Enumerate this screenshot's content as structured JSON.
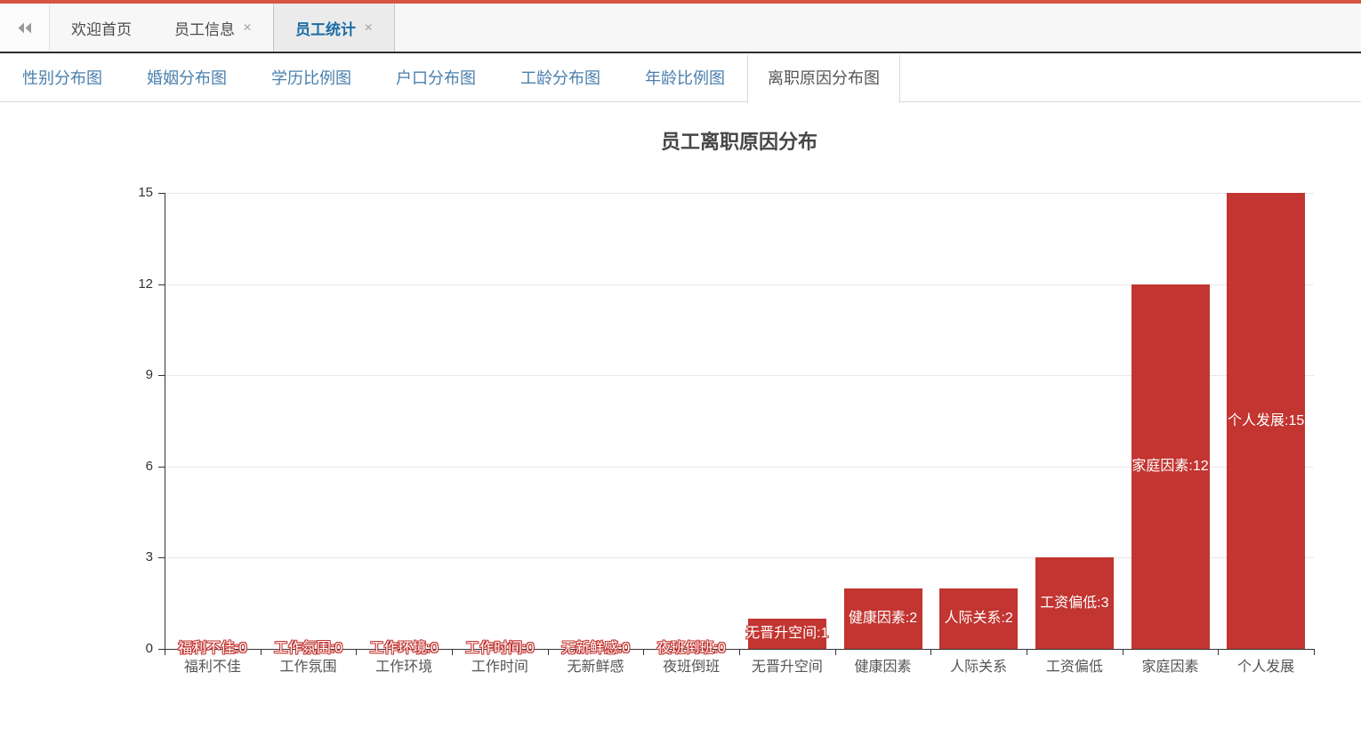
{
  "page": {
    "top_strip_color": "#d85442",
    "accent_blue": "#1b6ca8",
    "subtab_blue": "#4a7fad"
  },
  "tabbar": {
    "collapse_icon": "chevrons-left-icon",
    "tabs": [
      {
        "label": "欢迎首页",
        "closable": false,
        "active": false
      },
      {
        "label": "员工信息",
        "closable": true,
        "active": false,
        "close_glyph": "✕"
      },
      {
        "label": "员工统计",
        "closable": true,
        "active": true,
        "close_glyph": "✕"
      }
    ]
  },
  "subtabs": {
    "items": [
      {
        "label": "性别分布图",
        "active": false
      },
      {
        "label": "婚姻分布图",
        "active": false
      },
      {
        "label": "学历比例图",
        "active": false
      },
      {
        "label": "户口分布图",
        "active": false
      },
      {
        "label": "工龄分布图",
        "active": false
      },
      {
        "label": "年龄比例图",
        "active": false
      },
      {
        "label": "离职原因分布图",
        "active": true
      }
    ]
  },
  "chart_data": {
    "type": "bar",
    "title": "员工离职原因分布",
    "categories": [
      "福利不佳",
      "工作氛围",
      "工作环境",
      "工作时间",
      "无新鲜感",
      "夜班倒班",
      "无晋升空间",
      "健康因素",
      "人际关系",
      "工资偏低",
      "家庭因素",
      "个人发展"
    ],
    "values": [
      0,
      0,
      0,
      0,
      0,
      0,
      1,
      2,
      2,
      3,
      12,
      15
    ],
    "labels": [
      "福利不佳:0",
      "工作氛围:0",
      "工作环境:0",
      "工作时间:0",
      "无新鲜感:0",
      "夜班倒班:0",
      "无晋升空间:1",
      "健康因素:2",
      "人际关系:2",
      "工资偏低:3",
      "家庭因素:12",
      "个人发展:15"
    ],
    "label_format": "{name}:{value}",
    "xlabel": "",
    "ylabel": "",
    "ylim": [
      0,
      15
    ],
    "yticks": [
      0,
      3,
      6,
      9,
      12,
      15
    ],
    "grid": true,
    "legend": false,
    "bar_color": "#c23531",
    "axis_color": "#333333",
    "grid_color": "#e8e8e8",
    "label_text_color": "#ffffff",
    "label_outline_color": "#c23531"
  }
}
